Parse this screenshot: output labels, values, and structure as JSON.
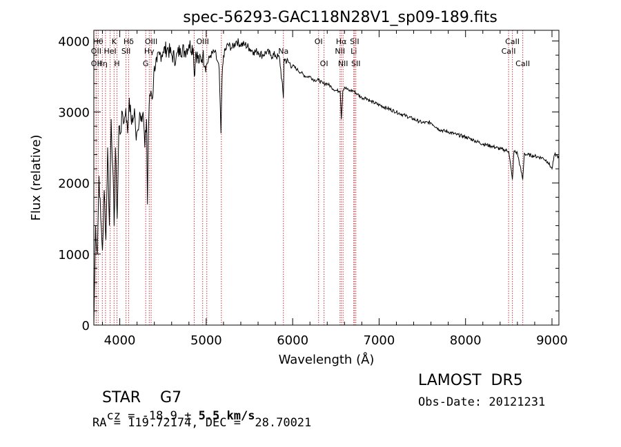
{
  "chart_data": {
    "type": "line",
    "title": "spec-56293-GAC118N28V1_sp09-189.fits",
    "xlabel": "Wavelength (Å)",
    "ylabel": "Flux (relative)",
    "xlim": [
      3700,
      9080
    ],
    "ylim": [
      0,
      4150
    ],
    "xticks": [
      4000,
      5000,
      6000,
      7000,
      8000,
      9000
    ],
    "yticks": [
      0,
      1000,
      2000,
      3000,
      4000
    ],
    "grid": false,
    "series": [
      {
        "x": [
          3700,
          3720,
          3740,
          3760,
          3780,
          3800,
          3820,
          3840,
          3860,
          3880,
          3900,
          3920,
          3935,
          3950,
          3970,
          3990,
          4010,
          4030,
          4050,
          4070,
          4090,
          4110,
          4130,
          4150,
          4170,
          4190,
          4210,
          4230,
          4250,
          4270,
          4290,
          4310,
          4320,
          4330,
          4340,
          4360,
          4380,
          4400,
          4430,
          4460,
          4500,
          4550,
          4600,
          4650,
          4700,
          4750,
          4800,
          4850,
          4862,
          4880,
          4920,
          4960,
          5000,
          5050,
          5100,
          5150,
          5170,
          5184,
          5200,
          5250,
          5300,
          5350,
          5400,
          5450,
          5500,
          5550,
          5600,
          5650,
          5700,
          5750,
          5800,
          5850,
          5893,
          5900,
          5950,
          6000,
          6050,
          6100,
          6150,
          6200,
          6250,
          6300,
          6350,
          6400,
          6450,
          6500,
          6550,
          6563,
          6580,
          6600,
          6650,
          6700,
          6750,
          6800,
          6850,
          6900,
          7000,
          7100,
          7200,
          7300,
          7400,
          7500,
          7600,
          7700,
          7800,
          7900,
          8000,
          8100,
          8200,
          8300,
          8400,
          8500,
          8542,
          8560,
          8600,
          8662,
          8680,
          8700,
          8800,
          8900,
          8950,
          9000,
          9030,
          9050,
          9080
        ],
        "y": [
          0,
          1400,
          1000,
          2100,
          1500,
          1050,
          1900,
          1200,
          2500,
          1400,
          2900,
          2200,
          1400,
          2500,
          1500,
          2800,
          2700,
          3000,
          2850,
          3050,
          2700,
          3200,
          2900,
          2850,
          3050,
          2600,
          2750,
          3000,
          2950,
          3000,
          2500,
          2900,
          1700,
          2700,
          3100,
          3300,
          3200,
          3650,
          3700,
          3800,
          3850,
          3900,
          3800,
          3750,
          3900,
          3850,
          3950,
          3900,
          3500,
          3850,
          3700,
          3800,
          3650,
          3800,
          3850,
          3600,
          2700,
          3500,
          3800,
          3950,
          3900,
          4000,
          3950,
          3950,
          3900,
          3850,
          3850,
          3800,
          3850,
          3800,
          3800,
          3750,
          3200,
          3750,
          3700,
          3650,
          3600,
          3550,
          3500,
          3500,
          3450,
          3450,
          3400,
          3400,
          3350,
          3300,
          3300,
          2900,
          3300,
          3350,
          3300,
          3300,
          3250,
          3200,
          3200,
          3150,
          3100,
          3050,
          3000,
          2950,
          2900,
          2850,
          2850,
          2750,
          2720,
          2680,
          2650,
          2600,
          2550,
          2520,
          2480,
          2450,
          2050,
          2450,
          2420,
          2050,
          2420,
          2400,
          2380,
          2350,
          2300,
          2200,
          2400,
          2400,
          2350
        ]
      }
    ],
    "lines": [
      {
        "x": 3750,
        "label": "Hθ",
        "row": 1
      },
      {
        "x": 3727,
        "label": "OII",
        "row": 2
      },
      {
        "x": 3727,
        "label": "OII",
        "row": 3
      },
      {
        "x": 3798,
        "label": "Hη",
        "row": 3
      },
      {
        "x": 3835,
        "label": "",
        "row": 0
      },
      {
        "x": 3889,
        "label": "HeI",
        "row": 2
      },
      {
        "x": 3934,
        "label": "K",
        "row": 1
      },
      {
        "x": 3968,
        "label": "H",
        "row": 3
      },
      {
        "x": 4072,
        "label": "SII",
        "row": 2
      },
      {
        "x": 4102,
        "label": "Hδ",
        "row": 1
      },
      {
        "x": 4300,
        "label": "G",
        "row": 3
      },
      {
        "x": 4341,
        "label": "Hγ",
        "row": 2
      },
      {
        "x": 4363,
        "label": "OIII",
        "row": 1
      },
      {
        "x": 4861,
        "label": "",
        "row": 0
      },
      {
        "x": 4959,
        "label": "OIII",
        "row": 1
      },
      {
        "x": 5007,
        "label": "",
        "row": 0
      },
      {
        "x": 5175,
        "label": "",
        "row": 0
      },
      {
        "x": 5893,
        "label": "Na",
        "row": 2
      },
      {
        "x": 6300,
        "label": "OI",
        "row": 1
      },
      {
        "x": 6363,
        "label": "OI",
        "row": 3
      },
      {
        "x": 6548,
        "label": "NII",
        "row": 2
      },
      {
        "x": 6563,
        "label": "Hα",
        "row": 1
      },
      {
        "x": 6583,
        "label": "NII",
        "row": 3
      },
      {
        "x": 6707,
        "label": "Li",
        "row": 2
      },
      {
        "x": 6716,
        "label": "SII",
        "row": 1
      },
      {
        "x": 6731,
        "label": "SII",
        "row": 3
      },
      {
        "x": 8498,
        "label": "CaII",
        "row": 2
      },
      {
        "x": 8542,
        "label": "CaII",
        "row": 1
      },
      {
        "x": 8662,
        "label": "CaII",
        "row": 3
      }
    ]
  },
  "info": {
    "class": "STAR",
    "subclass": "G7",
    "cz_label": "cz = ",
    "cz_value": "-18.9",
    "cz_pm": " ± ",
    "cz_err": "5.5",
    "cz_unit": " km/s",
    "coords": "RA = 119.72174, DEC =  28.70021",
    "survey": "LAMOST  DR5",
    "obs_date": "Obs-Date: 20121231"
  },
  "colors": {
    "spectrum": "#000000",
    "line_markers": "#c8323c",
    "axes": "#000000"
  }
}
